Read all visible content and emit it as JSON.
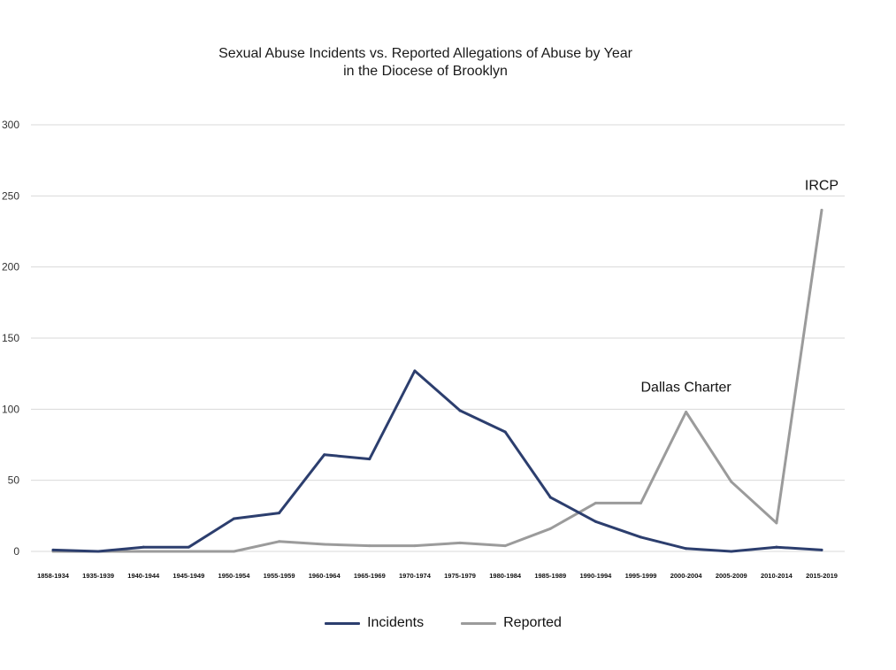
{
  "colors": {
    "incidents": "#2c3e6e",
    "reported": "#9b9b9b",
    "grid": "#d9d9d9"
  },
  "chart_data": {
    "type": "line",
    "title": "Sexual Abuse Incidents vs. Reported Allegations of Abuse by Year",
    "subtitle": "in the Diocese of Brooklyn",
    "xlabel": "",
    "ylabel": "",
    "ylim": [
      0,
      300
    ],
    "yticks": [
      0,
      50,
      100,
      150,
      200,
      250,
      300
    ],
    "grid": true,
    "legend_position": "bottom",
    "categories": [
      "1858-1934",
      "1935-1939",
      "1940-1944",
      "1945-1949",
      "1950-1954",
      "1955-1959",
      "1960-1964",
      "1965-1969",
      "1970-1974",
      "1975-1979",
      "1980-1984",
      "1985-1989",
      "1990-1994",
      "1995-1999",
      "2000-2004",
      "2005-2009",
      "2010-2014",
      "2015-2019"
    ],
    "series": [
      {
        "name": "Incidents",
        "color": "#2c3e6e",
        "values": [
          1,
          0,
          3,
          3,
          23,
          27,
          68,
          65,
          127,
          99,
          84,
          38,
          21,
          10,
          2,
          0,
          3,
          1
        ]
      },
      {
        "name": "Reported",
        "color": "#9b9b9b",
        "values": [
          0,
          0,
          0,
          0,
          0,
          7,
          5,
          4,
          4,
          6,
          4,
          16,
          34,
          34,
          98,
          49,
          20,
          240
        ]
      }
    ],
    "annotations": [
      {
        "text": "Dallas Charter",
        "category": "2000-2004",
        "value": 98
      },
      {
        "text": "IRCP",
        "category": "2015-2019",
        "value": 240
      }
    ]
  }
}
